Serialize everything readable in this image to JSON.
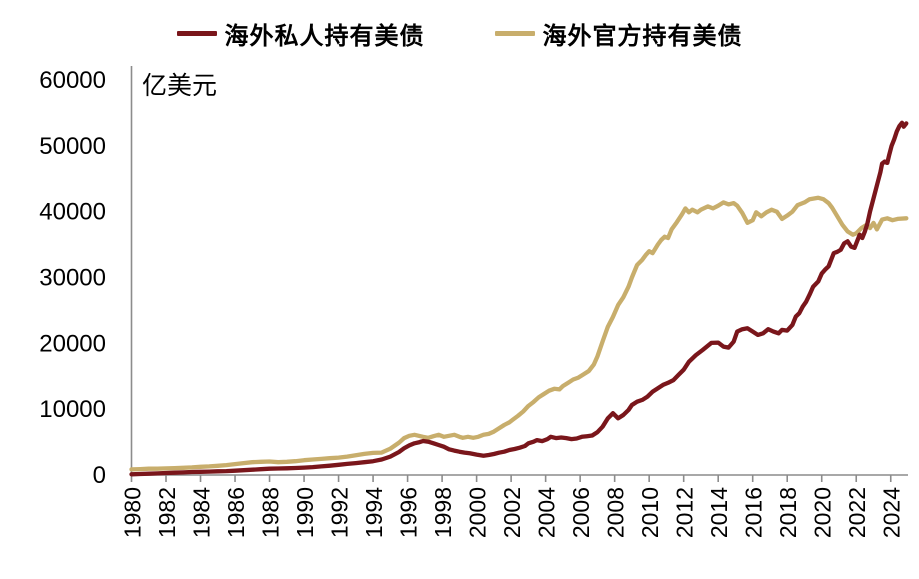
{
  "unit_label": "亿美元",
  "legend": {
    "items": [
      {
        "label": "海外私人持有美债",
        "color": "#7A161B"
      },
      {
        "label": "海外官方持有美债",
        "color": "#C8AE6C"
      }
    ]
  },
  "axis": {
    "line_color": "#8c8c8c",
    "label_color": "#000000",
    "x_tick_step_years": 2
  },
  "chart_data": {
    "type": "line",
    "title": "",
    "xlabel": "",
    "ylabel": "亿美元",
    "x_range": [
      1980,
      2025
    ],
    "ylim": [
      0,
      60000
    ],
    "y_ticks": [
      0,
      10000,
      20000,
      30000,
      40000,
      50000,
      60000
    ],
    "x_ticks": [
      1980,
      1982,
      1984,
      1986,
      1988,
      1990,
      1992,
      1994,
      1996,
      1998,
      2000,
      2002,
      2004,
      2006,
      2008,
      2010,
      2012,
      2014,
      2016,
      2018,
      2020,
      2022,
      2024
    ],
    "grid": false,
    "legend_position": "top-center",
    "series": [
      {
        "name": "海外官方持有美债",
        "color": "#C8AE6C",
        "points": [
          [
            1980,
            850
          ],
          [
            1980.5,
            900
          ],
          [
            1981,
            950
          ],
          [
            1981.5,
            950
          ],
          [
            1982,
            1000
          ],
          [
            1982.5,
            1050
          ],
          [
            1983,
            1100
          ],
          [
            1983.5,
            1150
          ],
          [
            1984,
            1250
          ],
          [
            1984.5,
            1300
          ],
          [
            1985,
            1400
          ],
          [
            1985.5,
            1500
          ],
          [
            1986,
            1650
          ],
          [
            1986.5,
            1800
          ],
          [
            1987,
            1950
          ],
          [
            1987.5,
            2000
          ],
          [
            1988,
            2050
          ],
          [
            1988.5,
            1950
          ],
          [
            1989,
            2000
          ],
          [
            1989.5,
            2100
          ],
          [
            1990,
            2250
          ],
          [
            1990.5,
            2350
          ],
          [
            1991,
            2450
          ],
          [
            1991.5,
            2550
          ],
          [
            1992,
            2650
          ],
          [
            1992.5,
            2800
          ],
          [
            1993,
            3000
          ],
          [
            1993.5,
            3200
          ],
          [
            1994,
            3350
          ],
          [
            1994.5,
            3400
          ],
          [
            1995,
            4000
          ],
          [
            1995.5,
            4900
          ],
          [
            1995.8,
            5600
          ],
          [
            1996.1,
            5950
          ],
          [
            1996.4,
            6100
          ],
          [
            1996.9,
            5800
          ],
          [
            1997.2,
            5650
          ],
          [
            1997.5,
            5900
          ],
          [
            1997.8,
            6100
          ],
          [
            1998.1,
            5800
          ],
          [
            1998.4,
            5950
          ],
          [
            1998.7,
            6100
          ],
          [
            1999,
            5800
          ],
          [
            1999.2,
            5650
          ],
          [
            1999.5,
            5800
          ],
          [
            1999.8,
            5650
          ],
          [
            2000.1,
            5800
          ],
          [
            2000.4,
            6100
          ],
          [
            2000.7,
            6250
          ],
          [
            2001,
            6600
          ],
          [
            2001.3,
            7100
          ],
          [
            2001.6,
            7600
          ],
          [
            2001.9,
            8000
          ],
          [
            2002.1,
            8400
          ],
          [
            2002.4,
            9000
          ],
          [
            2002.7,
            9650
          ],
          [
            2003,
            10500
          ],
          [
            2003.3,
            11100
          ],
          [
            2003.6,
            11800
          ],
          [
            2003.9,
            12300
          ],
          [
            2004.2,
            12800
          ],
          [
            2004.5,
            13100
          ],
          [
            2004.8,
            13000
          ],
          [
            2005,
            13500
          ],
          [
            2005.3,
            14000
          ],
          [
            2005.6,
            14500
          ],
          [
            2005.9,
            14800
          ],
          [
            2006.2,
            15300
          ],
          [
            2006.5,
            15800
          ],
          [
            2006.8,
            16800
          ],
          [
            2007,
            18000
          ],
          [
            2007.3,
            20300
          ],
          [
            2007.6,
            22500
          ],
          [
            2007.9,
            24000
          ],
          [
            2008.2,
            25800
          ],
          [
            2008.5,
            27000
          ],
          [
            2008.8,
            28600
          ],
          [
            2009,
            30000
          ],
          [
            2009.3,
            31900
          ],
          [
            2009.6,
            32700
          ],
          [
            2009.8,
            33400
          ],
          [
            2010,
            34000
          ],
          [
            2010.2,
            33700
          ],
          [
            2010.5,
            35000
          ],
          [
            2010.7,
            35700
          ],
          [
            2010.9,
            36200
          ],
          [
            2011.1,
            36000
          ],
          [
            2011.3,
            37300
          ],
          [
            2011.6,
            38400
          ],
          [
            2011.9,
            39600
          ],
          [
            2012.1,
            40500
          ],
          [
            2012.3,
            39900
          ],
          [
            2012.5,
            40300
          ],
          [
            2012.8,
            39900
          ],
          [
            2013,
            40300
          ],
          [
            2013.4,
            40800
          ],
          [
            2013.7,
            40500
          ],
          [
            2014,
            40900
          ],
          [
            2014.3,
            41400
          ],
          [
            2014.6,
            41100
          ],
          [
            2014.9,
            41300
          ],
          [
            2015.1,
            40900
          ],
          [
            2015.4,
            39800
          ],
          [
            2015.7,
            38300
          ],
          [
            2016,
            38700
          ],
          [
            2016.2,
            39900
          ],
          [
            2016.5,
            39300
          ],
          [
            2016.8,
            39900
          ],
          [
            2017.1,
            40300
          ],
          [
            2017.4,
            40000
          ],
          [
            2017.7,
            38900
          ],
          [
            2018,
            39400
          ],
          [
            2018.3,
            40000
          ],
          [
            2018.6,
            41000
          ],
          [
            2019,
            41400
          ],
          [
            2019.3,
            41900
          ],
          [
            2019.8,
            42100
          ],
          [
            2020.1,
            41900
          ],
          [
            2020.4,
            41300
          ],
          [
            2020.6,
            40600
          ],
          [
            2020.9,
            39300
          ],
          [
            2021.2,
            38000
          ],
          [
            2021.5,
            37000
          ],
          [
            2021.8,
            36500
          ],
          [
            2022,
            36700
          ],
          [
            2022.3,
            37500
          ],
          [
            2022.6,
            38000
          ],
          [
            2022.8,
            37500
          ],
          [
            2023,
            38300
          ],
          [
            2023.2,
            37300
          ],
          [
            2023.5,
            38800
          ],
          [
            2023.8,
            39000
          ],
          [
            2024.1,
            38700
          ],
          [
            2024.4,
            38900
          ],
          [
            2024.9,
            39000
          ]
        ]
      },
      {
        "name": "海外私人持有美债",
        "color": "#7A161B",
        "points": [
          [
            1980,
            100
          ],
          [
            1980.5,
            150
          ],
          [
            1981,
            200
          ],
          [
            1981.5,
            250
          ],
          [
            1982,
            300
          ],
          [
            1982.5,
            350
          ],
          [
            1983,
            400
          ],
          [
            1983.5,
            450
          ],
          [
            1984,
            480
          ],
          [
            1984.5,
            520
          ],
          [
            1985,
            560
          ],
          [
            1985.5,
            600
          ],
          [
            1986,
            660
          ],
          [
            1986.5,
            730
          ],
          [
            1987,
            800
          ],
          [
            1987.5,
            880
          ],
          [
            1988,
            950
          ],
          [
            1988.5,
            980
          ],
          [
            1989,
            1020
          ],
          [
            1989.5,
            1060
          ],
          [
            1990,
            1120
          ],
          [
            1990.5,
            1200
          ],
          [
            1991,
            1300
          ],
          [
            1991.5,
            1420
          ],
          [
            1992,
            1550
          ],
          [
            1992.5,
            1680
          ],
          [
            1993,
            1800
          ],
          [
            1993.5,
            1950
          ],
          [
            1994,
            2100
          ],
          [
            1994.5,
            2350
          ],
          [
            1995,
            2800
          ],
          [
            1995.5,
            3500
          ],
          [
            1995.8,
            4060
          ],
          [
            1996.1,
            4500
          ],
          [
            1996.4,
            4820
          ],
          [
            1996.7,
            5000
          ],
          [
            1996.9,
            5170
          ],
          [
            1997.2,
            5060
          ],
          [
            1997.5,
            4820
          ],
          [
            1997.8,
            4560
          ],
          [
            1998.1,
            4300
          ],
          [
            1998.4,
            3900
          ],
          [
            1998.7,
            3700
          ],
          [
            1999,
            3540
          ],
          [
            1999.3,
            3400
          ],
          [
            1999.6,
            3290
          ],
          [
            2000,
            3100
          ],
          [
            2000.4,
            2930
          ],
          [
            2000.7,
            3040
          ],
          [
            2001,
            3190
          ],
          [
            2001.3,
            3390
          ],
          [
            2001.6,
            3540
          ],
          [
            2001.9,
            3800
          ],
          [
            2002.2,
            3950
          ],
          [
            2002.5,
            4150
          ],
          [
            2002.8,
            4400
          ],
          [
            2003,
            4820
          ],
          [
            2003.3,
            5060
          ],
          [
            2003.5,
            5300
          ],
          [
            2003.8,
            5150
          ],
          [
            2004.1,
            5450
          ],
          [
            2004.3,
            5800
          ],
          [
            2004.6,
            5600
          ],
          [
            2004.9,
            5700
          ],
          [
            2005.2,
            5600
          ],
          [
            2005.5,
            5450
          ],
          [
            2005.8,
            5550
          ],
          [
            2006.1,
            5800
          ],
          [
            2006.4,
            5900
          ],
          [
            2006.7,
            6000
          ],
          [
            2007,
            6500
          ],
          [
            2007.3,
            7340
          ],
          [
            2007.6,
            8600
          ],
          [
            2007.9,
            9380
          ],
          [
            2008.2,
            8620
          ],
          [
            2008.5,
            9120
          ],
          [
            2008.8,
            9880
          ],
          [
            2009,
            10640
          ],
          [
            2009.3,
            11140
          ],
          [
            2009.6,
            11400
          ],
          [
            2009.9,
            11900
          ],
          [
            2010.2,
            12660
          ],
          [
            2010.5,
            13170
          ],
          [
            2010.8,
            13680
          ],
          [
            2011.1,
            14000
          ],
          [
            2011.4,
            14400
          ],
          [
            2011.7,
            15200
          ],
          [
            2012,
            16000
          ],
          [
            2012.3,
            17200
          ],
          [
            2012.7,
            18200
          ],
          [
            2013.1,
            19000
          ],
          [
            2013.6,
            20060
          ],
          [
            2014,
            20110
          ],
          [
            2014.3,
            19500
          ],
          [
            2014.6,
            19350
          ],
          [
            2014.9,
            20260
          ],
          [
            2015.1,
            21780
          ],
          [
            2015.4,
            22140
          ],
          [
            2015.7,
            22290
          ],
          [
            2016,
            21780
          ],
          [
            2016.3,
            21280
          ],
          [
            2016.6,
            21530
          ],
          [
            2016.9,
            22140
          ],
          [
            2017.2,
            21780
          ],
          [
            2017.5,
            21530
          ],
          [
            2017.7,
            22040
          ],
          [
            2018,
            21930
          ],
          [
            2018.3,
            22800
          ],
          [
            2018.5,
            24060
          ],
          [
            2018.7,
            24570
          ],
          [
            2018.9,
            25580
          ],
          [
            2019.1,
            26340
          ],
          [
            2019.3,
            27400
          ],
          [
            2019.5,
            28600
          ],
          [
            2019.8,
            29400
          ],
          [
            2020,
            30600
          ],
          [
            2020.2,
            31200
          ],
          [
            2020.4,
            31700
          ],
          [
            2020.5,
            32400
          ],
          [
            2020.7,
            33700
          ],
          [
            2020.9,
            33900
          ],
          [
            2021.1,
            34200
          ],
          [
            2021.3,
            35200
          ],
          [
            2021.5,
            35500
          ],
          [
            2021.7,
            34700
          ],
          [
            2021.9,
            34500
          ],
          [
            2022.05,
            35500
          ],
          [
            2022.2,
            36500
          ],
          [
            2022.35,
            36000
          ],
          [
            2022.5,
            37000
          ],
          [
            2022.65,
            38200
          ],
          [
            2022.8,
            40000
          ],
          [
            2022.95,
            41500
          ],
          [
            2023.1,
            43000
          ],
          [
            2023.25,
            44500
          ],
          [
            2023.4,
            46000
          ],
          [
            2023.5,
            47300
          ],
          [
            2023.65,
            47600
          ],
          [
            2023.8,
            47400
          ],
          [
            2023.9,
            48500
          ],
          [
            2024.05,
            50000
          ],
          [
            2024.2,
            51000
          ],
          [
            2024.35,
            52200
          ],
          [
            2024.5,
            53000
          ],
          [
            2024.65,
            53500
          ],
          [
            2024.75,
            52900
          ],
          [
            2024.9,
            53400
          ]
        ]
      }
    ]
  }
}
